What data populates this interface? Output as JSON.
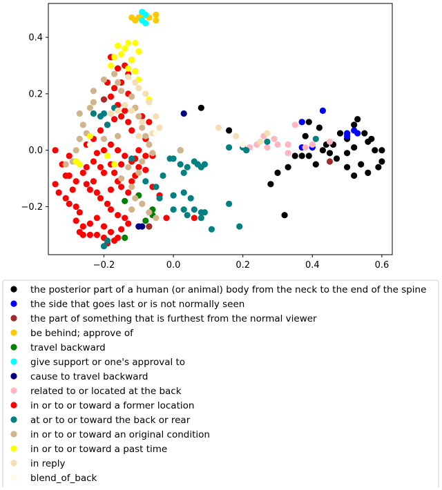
{
  "chart_data": {
    "type": "scatter",
    "title": "",
    "xlabel": "",
    "ylabel": "",
    "xlim": [
      -0.36,
      0.63
    ],
    "ylim": [
      -0.37,
      0.52
    ],
    "xticks": [
      -0.2,
      0.0,
      0.2,
      0.4,
      0.6
    ],
    "xtick_labels": [
      "−0.2",
      "0.0",
      "0.2",
      "0.4",
      "0.6"
    ],
    "yticks": [
      -0.2,
      0.0,
      0.2,
      0.4
    ],
    "ytick_labels": [
      "−0.2",
      "0.0",
      "0.2",
      "0.4"
    ],
    "grid": false,
    "legend_position": "below",
    "series": [
      {
        "name": "the posterior part of a human (or animal) body from the neck to the end of the spine",
        "color": "#000000",
        "points": [
          [
            0.37,
            0.1
          ],
          [
            0.39,
            0.1
          ],
          [
            0.38,
            0.05
          ],
          [
            0.42,
            0.08
          ],
          [
            0.44,
            0.02
          ],
          [
            0.46,
            0.02
          ],
          [
            0.48,
            0.06
          ],
          [
            0.5,
            0.04
          ],
          [
            0.5,
            -0.01
          ],
          [
            0.52,
            0.09
          ],
          [
            0.53,
            0.11
          ],
          [
            0.52,
            0.01
          ],
          [
            0.55,
            0.06
          ],
          [
            0.56,
            0.03
          ],
          [
            0.57,
            0.04
          ],
          [
            0.58,
            0.0
          ],
          [
            0.6,
            0.0
          ],
          [
            0.6,
            -0.04
          ],
          [
            0.59,
            -0.06
          ],
          [
            0.56,
            -0.08
          ],
          [
            0.54,
            -0.05
          ],
          [
            0.52,
            -0.09
          ],
          [
            0.5,
            -0.06
          ],
          [
            0.47,
            -0.03
          ],
          [
            0.45,
            -0.01
          ],
          [
            0.43,
            0.0
          ],
          [
            0.41,
            -0.05
          ],
          [
            0.39,
            -0.02
          ],
          [
            0.37,
            -0.02
          ],
          [
            0.35,
            -0.02
          ],
          [
            0.33,
            -0.06
          ],
          [
            0.3,
            -0.08
          ],
          [
            0.28,
            -0.12
          ],
          [
            0.32,
            -0.23
          ],
          [
            0.08,
            0.15
          ],
          [
            0.16,
            0.07
          ]
        ]
      },
      {
        "name": "the side that goes last or is not normally seen",
        "color": "#0000ff",
        "points": [
          [
            0.37,
            0.1
          ],
          [
            0.43,
            0.14
          ],
          [
            0.5,
            0.06
          ],
          [
            0.52,
            0.07
          ],
          [
            0.53,
            0.06
          ],
          [
            0.4,
            0.01
          ],
          [
            0.37,
            0.01
          ],
          [
            0.5,
            0.05
          ]
        ]
      },
      {
        "name": "the part of something that is furthest from the normal viewer",
        "color": "#a52a2a",
        "points": [
          [
            0.45,
            -0.04
          ],
          [
            -0.2,
            0.18
          ],
          [
            -0.07,
            -0.27
          ]
        ]
      },
      {
        "name": "be behind; approve of",
        "color": "#ffc800",
        "points": [
          [
            -0.12,
            0.47
          ],
          [
            -0.11,
            0.46
          ],
          [
            -0.09,
            0.48
          ],
          [
            -0.05,
            0.48
          ],
          [
            -0.05,
            0.46
          ],
          [
            -0.07,
            0.47
          ],
          [
            -0.1,
            0.47
          ]
        ]
      },
      {
        "name": "travel backward",
        "color": "#008000",
        "points": [
          [
            -0.1,
            -0.16
          ],
          [
            -0.14,
            -0.18
          ],
          [
            -0.06,
            -0.21
          ],
          [
            -0.06,
            -0.23
          ],
          [
            -0.08,
            -0.25
          ],
          [
            -0.14,
            -0.31
          ]
        ]
      },
      {
        "name": "give support or one's approval to",
        "color": "#00ffff",
        "points": [
          [
            -0.09,
            0.49
          ],
          [
            -0.08,
            0.48
          ],
          [
            -0.09,
            0.46
          ],
          [
            -0.08,
            0.45
          ]
        ]
      },
      {
        "name": "cause to travel backward",
        "color": "#00007d",
        "points": [
          [
            0.03,
            0.13
          ],
          [
            -0.1,
            -0.27
          ],
          [
            -0.09,
            -0.27
          ]
        ]
      },
      {
        "name": "related to or located at the back",
        "color": "#ffb6c1",
        "points": [
          [
            0.22,
            0.01
          ],
          [
            0.24,
            0.02
          ],
          [
            0.26,
            0.05
          ],
          [
            0.27,
            0.01
          ],
          [
            0.3,
            0.02
          ],
          [
            0.33,
            0.02
          ],
          [
            0.35,
            0.09
          ],
          [
            0.38,
            0.01
          ],
          [
            0.4,
            0.02
          ],
          [
            0.45,
            0.03
          ],
          [
            0.33,
            -0.01
          ],
          [
            0.29,
            0.04
          ]
        ]
      },
      {
        "name": "in or to or toward a former location",
        "color": "#ff0000",
        "points": [
          [
            -0.34,
            0.0
          ],
          [
            -0.32,
            -0.05
          ],
          [
            -0.3,
            -0.09
          ],
          [
            -0.28,
            -0.11
          ],
          [
            -0.34,
            -0.12
          ],
          [
            -0.33,
            -0.15
          ],
          [
            -0.31,
            -0.17
          ],
          [
            -0.3,
            -0.19
          ],
          [
            -0.28,
            -0.2
          ],
          [
            -0.27,
            -0.22
          ],
          [
            -0.28,
            -0.25
          ],
          [
            -0.26,
            -0.27
          ],
          [
            -0.27,
            -0.29
          ],
          [
            -0.26,
            -0.3
          ],
          [
            -0.24,
            -0.3
          ],
          [
            -0.22,
            -0.3
          ],
          [
            -0.24,
            -0.26
          ],
          [
            -0.22,
            -0.24
          ],
          [
            -0.2,
            -0.27
          ],
          [
            -0.18,
            -0.29
          ],
          [
            -0.17,
            -0.32
          ],
          [
            -0.16,
            -0.31
          ],
          [
            -0.19,
            -0.33
          ],
          [
            -0.2,
            -0.31
          ],
          [
            -0.15,
            -0.28
          ],
          [
            -0.13,
            -0.26
          ],
          [
            -0.14,
            -0.24
          ],
          [
            -0.16,
            -0.23
          ],
          [
            -0.18,
            -0.21
          ],
          [
            -0.19,
            -0.19
          ],
          [
            -0.21,
            -0.17
          ],
          [
            -0.22,
            -0.15
          ],
          [
            -0.24,
            -0.14
          ],
          [
            -0.25,
            -0.12
          ],
          [
            -0.23,
            -0.11
          ],
          [
            -0.26,
            -0.08
          ],
          [
            -0.25,
            -0.06
          ],
          [
            -0.23,
            -0.04
          ],
          [
            -0.21,
            -0.06
          ],
          [
            -0.2,
            -0.08
          ],
          [
            -0.18,
            -0.05
          ],
          [
            -0.17,
            -0.08
          ],
          [
            -0.16,
            -0.11
          ],
          [
            -0.15,
            -0.13
          ],
          [
            -0.13,
            -0.15
          ],
          [
            -0.12,
            -0.11
          ],
          [
            -0.11,
            -0.09
          ],
          [
            -0.1,
            -0.06
          ],
          [
            -0.12,
            -0.04
          ],
          [
            -0.14,
            -0.02
          ],
          [
            -0.16,
            0.0
          ],
          [
            -0.18,
            0.02
          ],
          [
            -0.2,
            0.0
          ],
          [
            -0.22,
            -0.01
          ],
          [
            -0.25,
            0.02
          ],
          [
            -0.23,
            0.04
          ],
          [
            -0.21,
            0.07
          ],
          [
            -0.19,
            0.09
          ],
          [
            -0.17,
            0.11
          ],
          [
            -0.15,
            0.12
          ],
          [
            -0.13,
            0.1
          ],
          [
            -0.14,
            0.14
          ],
          [
            -0.16,
            0.16
          ],
          [
            -0.18,
            0.19
          ],
          [
            -0.17,
            0.22
          ],
          [
            -0.15,
            0.24
          ],
          [
            -0.13,
            0.27
          ],
          [
            -0.16,
            0.29
          ],
          [
            -0.14,
            0.3
          ],
          [
            -0.11,
            0.28
          ],
          [
            -0.12,
            0.32
          ],
          [
            -0.18,
            0.33
          ],
          [
            -0.19,
            0.24
          ],
          [
            -0.13,
            0.2
          ],
          [
            -0.11,
            0.15
          ],
          [
            -0.09,
            0.12
          ],
          [
            -0.07,
            0.1
          ],
          [
            -0.12,
            0.07
          ],
          [
            -0.08,
            0.04
          ],
          [
            -0.1,
            0.0
          ],
          [
            -0.11,
            -0.03
          ],
          [
            -0.08,
            -0.07
          ],
          [
            -0.06,
            -0.13
          ],
          [
            -0.04,
            -0.16
          ],
          [
            -0.02,
            -0.24
          ],
          [
            -0.29,
            -0.14
          ],
          [
            -0.31,
            -0.09
          ],
          [
            -0.3,
            -0.02
          ],
          [
            -0.28,
            -0.04
          ],
          [
            -0.18,
            -0.14
          ],
          [
            -0.15,
            -0.05
          ],
          [
            -0.08,
            -0.02
          ],
          [
            -0.06,
            -0.02
          ],
          [
            0.06,
            -0.24
          ]
        ]
      },
      {
        "name": "at or to or toward the back or rear",
        "color": "#008080",
        "points": [
          [
            -0.2,
            0.13
          ],
          [
            -0.19,
            0.09
          ],
          [
            -0.17,
            0.15
          ],
          [
            -0.12,
            -0.03
          ],
          [
            -0.08,
            -0.11
          ],
          [
            -0.05,
            -0.13
          ],
          [
            -0.04,
            -0.17
          ],
          [
            -0.03,
            -0.09
          ],
          [
            -0.01,
            -0.03
          ],
          [
            0.0,
            -0.03
          ],
          [
            0.02,
            -0.05
          ],
          [
            0.03,
            -0.08
          ],
          [
            0.04,
            -0.06
          ],
          [
            0.06,
            -0.04
          ],
          [
            0.07,
            -0.05
          ],
          [
            0.08,
            -0.06
          ],
          [
            0.09,
            -0.05
          ],
          [
            0.03,
            -0.15
          ],
          [
            0.05,
            -0.17
          ],
          [
            0.03,
            -0.21
          ],
          [
            0.04,
            -0.23
          ],
          [
            0.06,
            -0.21
          ],
          [
            0.08,
            -0.22
          ],
          [
            0.08,
            -0.24
          ],
          [
            0.09,
            -0.22
          ],
          [
            0.11,
            -0.28
          ],
          [
            0.16,
            -0.19
          ],
          [
            0.19,
            -0.27
          ],
          [
            0.16,
            0.01
          ],
          [
            0.21,
            0.0
          ],
          [
            0.2,
            0.01
          ],
          [
            0.27,
            0.03
          ],
          [
            0.41,
            0.04
          ],
          [
            -0.2,
            -0.34
          ],
          [
            -0.19,
            -0.32
          ],
          [
            0.0,
            -0.16
          ],
          [
            0.02,
            0.0
          ],
          [
            -0.23,
            0.13
          ],
          [
            -0.21,
            0.12
          ],
          [
            0.0,
            -0.21
          ]
        ]
      },
      {
        "name": "in or to or toward an original condition",
        "color": "#d2b48c",
        "points": [
          [
            -0.29,
            -0.04
          ],
          [
            -0.31,
            -0.05
          ],
          [
            -0.28,
            0.0
          ],
          [
            -0.27,
            0.04
          ],
          [
            -0.26,
            0.09
          ],
          [
            -0.27,
            0.13
          ],
          [
            -0.24,
            0.15
          ],
          [
            -0.23,
            0.21
          ],
          [
            -0.2,
            0.25
          ],
          [
            -0.17,
            0.27
          ],
          [
            -0.16,
            0.24
          ],
          [
            -0.15,
            0.21
          ],
          [
            -0.12,
            0.19
          ],
          [
            -0.11,
            0.15
          ],
          [
            -0.1,
            0.12
          ],
          [
            -0.09,
            0.08
          ],
          [
            -0.08,
            0.05
          ],
          [
            -0.07,
            0.02
          ],
          [
            -0.06,
            -0.01
          ],
          [
            -0.09,
            -0.04
          ],
          [
            -0.1,
            -0.08
          ],
          [
            -0.12,
            -0.13
          ],
          [
            -0.11,
            -0.17
          ],
          [
            -0.09,
            -0.19
          ],
          [
            -0.07,
            -0.22
          ],
          [
            -0.05,
            -0.24
          ],
          [
            -0.13,
            -0.06
          ],
          [
            -0.15,
            -0.1
          ],
          [
            -0.16,
            0.05
          ],
          [
            -0.2,
            0.04
          ],
          [
            -0.25,
            0.06
          ],
          [
            -0.23,
            0.17
          ],
          [
            -0.12,
            -0.21
          ],
          [
            0.02,
            0.0
          ]
        ]
      },
      {
        "name": "in or to or toward a past time",
        "color": "#ffff00",
        "points": [
          [
            -0.16,
            0.37
          ],
          [
            -0.17,
            0.33
          ],
          [
            -0.14,
            0.36
          ],
          [
            -0.13,
            0.38
          ],
          [
            -0.11,
            0.38
          ],
          [
            -0.1,
            0.35
          ],
          [
            -0.12,
            0.32
          ],
          [
            -0.15,
            0.34
          ],
          [
            -0.18,
            0.3
          ],
          [
            -0.13,
            0.29
          ],
          [
            -0.11,
            0.28
          ],
          [
            -0.1,
            0.25
          ],
          [
            -0.07,
            0.18
          ],
          [
            -0.27,
            -0.05
          ],
          [
            -0.28,
            -0.04
          ],
          [
            -0.17,
            -0.05
          ],
          [
            -0.19,
            -0.02
          ],
          [
            -0.24,
            0.05
          ]
        ]
      },
      {
        "name": "in reply",
        "color": "#f5deb3",
        "points": [
          [
            -0.13,
            0.26
          ],
          [
            -0.11,
            0.24
          ],
          [
            -0.1,
            0.22
          ],
          [
            -0.08,
            0.2
          ],
          [
            -0.07,
            0.17
          ],
          [
            -0.05,
            0.12
          ],
          [
            -0.04,
            0.08
          ],
          [
            -0.06,
            0.06
          ],
          [
            -0.09,
            0.1
          ],
          [
            -0.12,
            0.14
          ],
          [
            -0.14,
            0.16
          ],
          [
            -0.16,
            0.14
          ],
          [
            -0.18,
            0.13
          ],
          [
            -0.1,
            0.05
          ],
          [
            0.13,
            0.08
          ],
          [
            0.18,
            0.05
          ],
          [
            0.25,
            0.03
          ],
          [
            0.27,
            0.06
          ]
        ]
      },
      {
        "name": "blend_of_back",
        "color": "#fffae6",
        "points": [
          [
            -0.24,
            0.02
          ],
          [
            -0.05,
            0.06
          ],
          [
            0.2,
            0.02
          ]
        ]
      }
    ]
  }
}
